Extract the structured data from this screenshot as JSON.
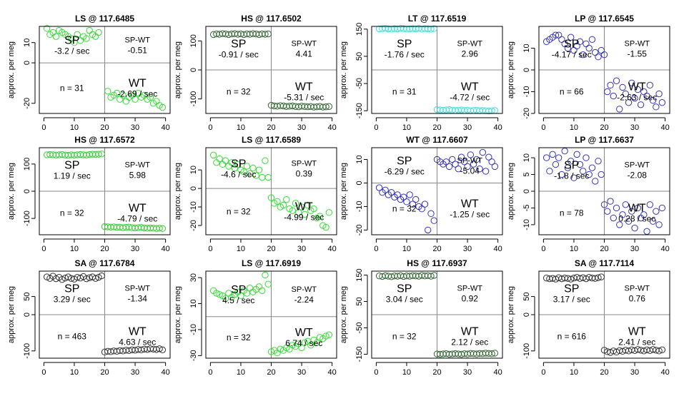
{
  "chart_data": [
    {
      "type": "scatter",
      "title": "LS @ 117.6485",
      "ylabel": "approx. per meg",
      "color": "#33dd33",
      "ylim": [
        -25,
        18
      ],
      "yticks": [
        10,
        0,
        -20
      ],
      "xticks": [
        0,
        10,
        20,
        30,
        40
      ],
      "sp_label": "SP",
      "sp_rate": "-3.2 / sec",
      "spwt_label": "SP-WT",
      "spwt_value": "-0.51",
      "n_label": "n = 31",
      "wt_label": "WT",
      "wt_rate": "-2.69 / sec",
      "sp_x": [
        1,
        2,
        3,
        4,
        5,
        6,
        7,
        8,
        9,
        10,
        11,
        12,
        13,
        14,
        15,
        16,
        17,
        18
      ],
      "sp_y": [
        17,
        14,
        15,
        13,
        16,
        15,
        14,
        13,
        12,
        10,
        14,
        11,
        13,
        12,
        16,
        14,
        13,
        15
      ],
      "wt_x": [
        21,
        22,
        23,
        24,
        25,
        26,
        27,
        28,
        29,
        30,
        31,
        32,
        33,
        34,
        35,
        36,
        37,
        38,
        39
      ],
      "wt_y": [
        -14,
        -17,
        -16,
        -15,
        -18,
        -16,
        -19,
        -17,
        -16,
        -18,
        -15,
        -17,
        -16,
        -18,
        -17,
        -20,
        -19,
        -21,
        -22
      ]
    },
    {
      "type": "scatter",
      "title": "HS @ 117.6502",
      "ylabel": "approx. per meg",
      "color": "#336633",
      "ylim": [
        -150,
        150
      ],
      "yticks": [
        100,
        0,
        -100
      ],
      "xticks": [
        0,
        10,
        20,
        30,
        40
      ],
      "sp_label": "SP",
      "sp_rate": "-0.91 / sec",
      "spwt_label": "SP-WT",
      "spwt_value": "4.41",
      "n_label": "n = 32",
      "wt_label": "WT",
      "wt_rate": "-5.31 / sec",
      "sp_x": [
        1,
        2,
        3,
        4,
        5,
        6,
        7,
        8,
        9,
        10,
        11,
        12,
        13,
        14,
        15,
        16,
        17,
        18,
        19
      ],
      "sp_y": [
        122,
        124,
        123,
        125,
        124,
        122,
        124,
        125,
        123,
        124,
        122,
        124,
        123,
        125,
        124,
        122,
        124,
        123,
        124
      ],
      "wt_x": [
        20,
        21,
        22,
        23,
        24,
        25,
        26,
        27,
        28,
        29,
        30,
        31,
        32,
        33,
        34,
        35,
        36,
        37,
        38,
        39
      ],
      "wt_y": [
        -122,
        -124,
        -125,
        -123,
        -124,
        -126,
        -125,
        -124,
        -126,
        -127,
        -125,
        -126,
        -127,
        -126,
        -128,
        -127,
        -126,
        -128,
        -127,
        -126
      ]
    },
    {
      "type": "scatter",
      "title": "LT @ 117.6519",
      "ylabel": "approx. per meg",
      "color": "#44dddd",
      "ylim": [
        -160,
        160
      ],
      "yticks": [
        150,
        50,
        -50,
        -150
      ],
      "xticks": [
        0,
        10,
        20,
        30,
        40
      ],
      "sp_label": "SP",
      "sp_rate": "-1.76 / sec",
      "spwt_label": "SP-WT",
      "spwt_value": "2.96",
      "n_label": "n = 31",
      "wt_label": "WT",
      "wt_rate": "-4.72 / sec",
      "sp_x": [
        1,
        2,
        3,
        4,
        5,
        6,
        7,
        8,
        9,
        10,
        11,
        12,
        13,
        14,
        15,
        16,
        17,
        18,
        19
      ],
      "sp_y": [
        151,
        152,
        153,
        151,
        150,
        152,
        151,
        153,
        152,
        150,
        151,
        152,
        151,
        153,
        150,
        152,
        151,
        150,
        152
      ],
      "wt_x": [
        20,
        21,
        22,
        23,
        24,
        25,
        26,
        27,
        28,
        29,
        30,
        31,
        32,
        33,
        34,
        35,
        36,
        37,
        38,
        39
      ],
      "wt_y": [
        -146,
        -147,
        -148,
        -147,
        -146,
        -148,
        -149,
        -148,
        -147,
        -149,
        -148,
        -150,
        -149,
        -148,
        -150,
        -149,
        -150,
        -151,
        -150,
        -149
      ]
    },
    {
      "type": "scatter",
      "title": "LP @ 117.6545",
      "ylabel": "approx. per meg",
      "color": "#3333bb",
      "ylim": [
        -20,
        20
      ],
      "yticks": [
        10,
        0,
        -10,
        -20
      ],
      "xticks": [
        0,
        10,
        20,
        30,
        40
      ],
      "sp_label": "SP",
      "sp_rate": "-4.17 / sec",
      "spwt_label": "SP-WT",
      "spwt_value": "-1.55",
      "n_label": "n = 66",
      "wt_label": "WT",
      "wt_rate": "-2.63 / sec",
      "sp_x": [
        1,
        2,
        3,
        4,
        5,
        6,
        7,
        8,
        9,
        10,
        11,
        12,
        13,
        14,
        15,
        16,
        17,
        18,
        19,
        20
      ],
      "sp_y": [
        13,
        14,
        15,
        16,
        16,
        14,
        12,
        10,
        15,
        9,
        11,
        13,
        7,
        12,
        10,
        14,
        8,
        6,
        9,
        7
      ],
      "wt_x": [
        21,
        22,
        23,
        24,
        25,
        26,
        27,
        28,
        29,
        30,
        31,
        32,
        33,
        34,
        35,
        36,
        37,
        38,
        39
      ],
      "wt_y": [
        -10,
        -7,
        -12,
        -5,
        -18,
        -8,
        -11,
        -15,
        -6,
        -13,
        -9,
        -16,
        -10,
        -12,
        -7,
        -14,
        -17,
        -11,
        -15
      ]
    },
    {
      "type": "scatter",
      "title": "HS @ 117.6572",
      "ylabel": "approx. per meg",
      "color": "#33cc33",
      "ylim": [
        -160,
        160
      ],
      "yticks": [
        100,
        0,
        -100
      ],
      "xticks": [
        0,
        10,
        20,
        30,
        40
      ],
      "sp_label": "SP",
      "sp_rate": "1.19 / sec",
      "spwt_label": "SP-WT",
      "spwt_value": "5.98",
      "n_label": "n = 32",
      "wt_label": "WT",
      "wt_rate": "-4.79 / sec",
      "sp_x": [
        1,
        2,
        3,
        4,
        5,
        6,
        7,
        8,
        9,
        10,
        11,
        12,
        13,
        14,
        15,
        16,
        17,
        18,
        19
      ],
      "sp_y": [
        134,
        135,
        134,
        133,
        134,
        135,
        133,
        132,
        134,
        133,
        134,
        135,
        134,
        133,
        135,
        136,
        135,
        136,
        137
      ],
      "wt_x": [
        20,
        21,
        22,
        23,
        24,
        25,
        26,
        27,
        28,
        29,
        30,
        31,
        32,
        33,
        34,
        35,
        36,
        37,
        38,
        39
      ],
      "wt_y": [
        -130,
        -131,
        -132,
        -131,
        -133,
        -132,
        -134,
        -133,
        -132,
        -134,
        -135,
        -134,
        -133,
        -135,
        -136,
        -135,
        -136,
        -137,
        -136,
        -137
      ]
    },
    {
      "type": "scatter",
      "title": "LS @ 117.6589",
      "ylabel": "approx. per meg",
      "color": "#33dd33",
      "ylim": [
        -25,
        22
      ],
      "yticks": [
        10,
        0,
        -10,
        -20
      ],
      "xticks": [
        0,
        10,
        20,
        30,
        40
      ],
      "sp_label": "SP",
      "sp_rate": "-4.6 / sec",
      "spwt_label": "SP-WT",
      "spwt_value": "0.39",
      "n_label": "n = 32",
      "wt_label": "WT",
      "wt_rate": "-4.99 / sec",
      "sp_x": [
        1,
        2,
        3,
        4,
        5,
        6,
        7,
        8,
        9,
        10,
        11,
        12,
        13,
        14,
        15,
        16,
        17,
        18,
        19
      ],
      "sp_y": [
        18,
        14,
        16,
        13,
        15,
        12,
        14,
        11,
        13,
        10,
        9,
        12,
        8,
        11,
        7,
        10,
        6,
        15,
        6
      ],
      "wt_x": [
        20,
        21,
        22,
        23,
        24,
        25,
        26,
        27,
        28,
        29,
        30,
        31,
        32,
        33,
        34,
        35,
        36,
        37,
        38,
        39
      ],
      "wt_y": [
        -5,
        -8,
        -7,
        -10,
        -9,
        -6,
        -11,
        -12,
        -8,
        -13,
        -10,
        -14,
        -9,
        -12,
        -11,
        -16,
        -15,
        -20,
        -21,
        -13
      ]
    },
    {
      "type": "scatter",
      "title": "WT @ 117.6607",
      "ylabel": "approx. per meg",
      "color": "#3333bb",
      "ylim": [
        -22,
        15
      ],
      "yticks": [
        10,
        0,
        -10,
        -20
      ],
      "xticks": [
        0,
        10,
        20,
        30,
        40
      ],
      "sp_label": "SP",
      "sp_rate": "-6.29 / sec",
      "spwt_label": "SP-WT",
      "spwt_value": "-5.04",
      "n_label": "n = 32",
      "wt_label": "WT",
      "wt_rate": "-1.25 / sec",
      "sp_x": [
        1,
        2,
        3,
        4,
        5,
        6,
        7,
        8,
        9,
        10,
        11,
        12,
        13,
        14,
        15,
        16,
        17,
        18,
        19
      ],
      "sp_y": [
        -2,
        -4,
        -3,
        -5,
        -4,
        -6,
        -5,
        -7,
        -6,
        -8,
        -5,
        -9,
        -7,
        -10,
        -11,
        -9,
        -20,
        -13,
        -16
      ],
      "wt_x": [
        20,
        21,
        22,
        23,
        24,
        25,
        26,
        27,
        28,
        29,
        30,
        31,
        32,
        33,
        34,
        35,
        36,
        37,
        38,
        39
      ],
      "wt_y": [
        10,
        9,
        8,
        9,
        7,
        10,
        8,
        6,
        11,
        9,
        7,
        12,
        8,
        10,
        6,
        13,
        5,
        11,
        9,
        7
      ]
    },
    {
      "type": "scatter",
      "title": "LP @ 117.6637",
      "ylabel": "approx. per meg",
      "color": "#3333bb",
      "ylim": [
        -13,
        13
      ],
      "yticks": [
        10,
        5,
        0,
        -5,
        -10
      ],
      "xticks": [
        0,
        10,
        20,
        30,
        40
      ],
      "sp_label": "SP",
      "sp_rate": "-1.8 / sec",
      "spwt_label": "SP-WT",
      "spwt_value": "-2.08",
      "n_label": "n = 78",
      "wt_label": "WT",
      "wt_rate": "0.28 / sec",
      "sp_x": [
        1,
        2,
        3,
        4,
        5,
        6,
        7,
        8,
        9,
        10,
        11,
        12,
        13,
        14,
        15,
        16,
        17,
        18,
        19
      ],
      "sp_y": [
        10,
        6,
        11,
        8,
        10,
        5,
        12,
        7,
        9,
        4,
        11,
        8,
        6,
        10,
        5,
        7,
        3,
        9,
        5
      ],
      "wt_x": [
        20,
        21,
        22,
        23,
        24,
        25,
        26,
        27,
        28,
        29,
        30,
        31,
        32,
        33,
        34,
        35,
        36,
        37,
        38,
        39
      ],
      "wt_y": [
        -4,
        -6,
        -3,
        -8,
        -5,
        -10,
        -7,
        -4,
        -9,
        -6,
        -11,
        -5,
        -8,
        -7,
        -12,
        -4,
        -9,
        -6,
        -10,
        -5
      ]
    },
    {
      "type": "scatter",
      "title": "SA @ 117.6784",
      "ylabel": "approx. per meg",
      "color": "#333333",
      "ylim": [
        -120,
        120
      ],
      "yticks": [
        50,
        0,
        -100
      ],
      "xticks": [
        0,
        10,
        20,
        30,
        40
      ],
      "sp_label": "SP",
      "sp_rate": "3.29 / sec",
      "spwt_label": "SP-WT",
      "spwt_value": "-1.34",
      "n_label": "n = 463",
      "wt_label": "WT",
      "wt_rate": "4.63 / sec",
      "sp_x": [
        1,
        2,
        3,
        4,
        5,
        6,
        7,
        8,
        9,
        10,
        11,
        12,
        13,
        14,
        15,
        16,
        17,
        18,
        19
      ],
      "sp_y": [
        104,
        100,
        106,
        99,
        103,
        97,
        101,
        104,
        100,
        98,
        103,
        101,
        105,
        99,
        102,
        104,
        100,
        103,
        107
      ],
      "wt_x": [
        20,
        21,
        22,
        23,
        24,
        25,
        26,
        27,
        28,
        29,
        30,
        31,
        32,
        33,
        34,
        35,
        36,
        37,
        38,
        39
      ],
      "wt_y": [
        -103,
        -101,
        -102,
        -100,
        -101,
        -99,
        -100,
        -98,
        -99,
        -97,
        -98,
        -96,
        -97,
        -95,
        -96,
        -94,
        -95,
        -96,
        -94,
        -97
      ]
    },
    {
      "type": "scatter",
      "title": "LS @ 117.6919",
      "ylabel": "approx. per meg",
      "color": "#33dd33",
      "ylim": [
        -32,
        35
      ],
      "yticks": [
        30,
        10,
        -10,
        -30
      ],
      "xticks": [
        0,
        10,
        20,
        30,
        40
      ],
      "sp_label": "SP",
      "sp_rate": "4.5 / sec",
      "spwt_label": "SP-WT",
      "spwt_value": "-2.24",
      "n_label": "n = 32",
      "wt_label": "WT",
      "wt_rate": "6.74 / sec",
      "sp_x": [
        1,
        2,
        3,
        4,
        5,
        6,
        7,
        8,
        9,
        10,
        11,
        12,
        13,
        14,
        15,
        16,
        17,
        18,
        19
      ],
      "sp_y": [
        20,
        18,
        17,
        16,
        14,
        18,
        15,
        17,
        19,
        16,
        20,
        18,
        22,
        19,
        21,
        23,
        20,
        32,
        25
      ],
      "wt_x": [
        20,
        21,
        22,
        23,
        24,
        25,
        26,
        27,
        28,
        29,
        30,
        31,
        32,
        33,
        34,
        35,
        36,
        37,
        38,
        39
      ],
      "wt_y": [
        -27,
        -26,
        -28,
        -25,
        -26,
        -24,
        -25,
        -22,
        -23,
        -21,
        -24,
        -20,
        -19,
        -22,
        -18,
        -20,
        -16,
        -17,
        -15,
        -14
      ]
    },
    {
      "type": "scatter",
      "title": "HS @ 117.6937",
      "ylabel": "approx. per meg",
      "color": "#336633",
      "ylim": [
        -165,
        165
      ],
      "yticks": [
        150,
        50,
        -50,
        -150
      ],
      "xticks": [
        0,
        10,
        20,
        30,
        40
      ],
      "sp_label": "SP",
      "sp_rate": "3.04 / sec",
      "spwt_label": "SP-WT",
      "spwt_value": "0.92",
      "n_label": "n = 32",
      "wt_label": "WT",
      "wt_rate": "2.12 / sec",
      "sp_x": [
        1,
        2,
        3,
        4,
        5,
        6,
        7,
        8,
        9,
        10,
        11,
        12,
        13,
        14,
        15,
        16,
        17,
        18,
        19
      ],
      "sp_y": [
        147,
        145,
        148,
        146,
        144,
        147,
        146,
        148,
        145,
        147,
        146,
        148,
        147,
        146,
        149,
        147,
        148,
        146,
        149
      ],
      "wt_x": [
        20,
        21,
        22,
        23,
        24,
        25,
        26,
        27,
        28,
        29,
        30,
        31,
        32,
        33,
        34,
        35,
        36,
        37,
        38,
        39
      ],
      "wt_y": [
        -149,
        -150,
        -149,
        -148,
        -150,
        -149,
        -148,
        -149,
        -150,
        -148,
        -149,
        -147,
        -148,
        -149,
        -147,
        -148,
        -146,
        -147,
        -148,
        -146
      ]
    },
    {
      "type": "scatter",
      "title": "SA @ 117.7114",
      "ylabel": "approx. per meg",
      "color": "#333333",
      "ylim": [
        -120,
        120
      ],
      "yticks": [
        50,
        0,
        -100
      ],
      "xticks": [
        0,
        10,
        20,
        30,
        40
      ],
      "sp_label": "SP",
      "sp_rate": "3.17 / sec",
      "spwt_label": "SP-WT",
      "spwt_value": "0.76",
      "n_label": "n = 616",
      "wt_label": "WT",
      "wt_rate": "2.41 / sec",
      "sp_x": [
        1,
        2,
        3,
        4,
        5,
        6,
        7,
        8,
        9,
        10,
        11,
        12,
        13,
        14,
        15,
        16,
        17,
        18,
        19
      ],
      "sp_y": [
        101,
        99,
        100,
        98,
        102,
        99,
        101,
        100,
        98,
        101,
        103,
        100,
        102,
        99,
        103,
        101,
        100,
        102,
        104
      ],
      "wt_x": [
        20,
        21,
        22,
        23,
        24,
        25,
        26,
        27,
        28,
        29,
        30,
        31,
        32,
        33,
        34,
        35,
        36,
        37,
        38,
        39
      ],
      "wt_y": [
        -98,
        -102,
        -104,
        -100,
        -103,
        -99,
        -101,
        -98,
        -100,
        -97,
        -99,
        -96,
        -98,
        -100,
        -97,
        -99,
        -96,
        -98,
        -100,
        -97
      ]
    }
  ]
}
